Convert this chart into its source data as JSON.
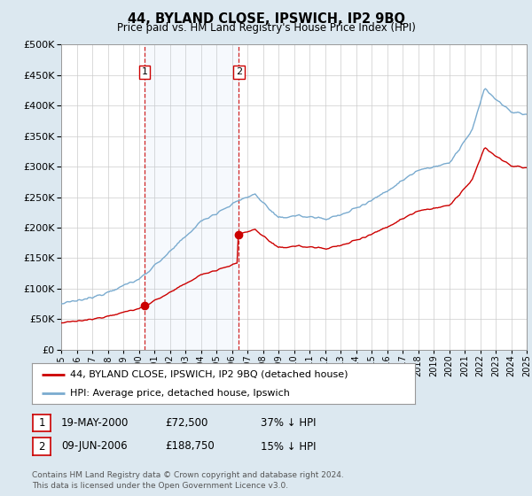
{
  "title": "44, BYLAND CLOSE, IPSWICH, IP2 9BQ",
  "subtitle": "Price paid vs. HM Land Registry's House Price Index (HPI)",
  "legend_line1": "44, BYLAND CLOSE, IPSWICH, IP2 9BQ (detached house)",
  "legend_line2": "HPI: Average price, detached house, Ipswich",
  "annotation1_label": "1",
  "annotation1_date": "19-MAY-2000",
  "annotation1_price": "£72,500",
  "annotation1_hpi": "37% ↓ HPI",
  "annotation2_label": "2",
  "annotation2_date": "09-JUN-2006",
  "annotation2_price": "£188,750",
  "annotation2_hpi": "15% ↓ HPI",
  "footer": "Contains HM Land Registry data © Crown copyright and database right 2024.\nThis data is licensed under the Open Government Licence v3.0.",
  "sale1_year": 2000.38,
  "sale1_price": 72500,
  "sale2_year": 2006.44,
  "sale2_price": 188750,
  "line_color_red": "#cc0000",
  "line_color_blue": "#7aabcf",
  "vline_color": "#cc0000",
  "background_color": "#dce8f0",
  "plot_bg_color": "#ffffff",
  "grid_color": "#cccccc",
  "ylim": [
    0,
    500000
  ],
  "xlim_start": 1995,
  "xlim_end": 2025
}
